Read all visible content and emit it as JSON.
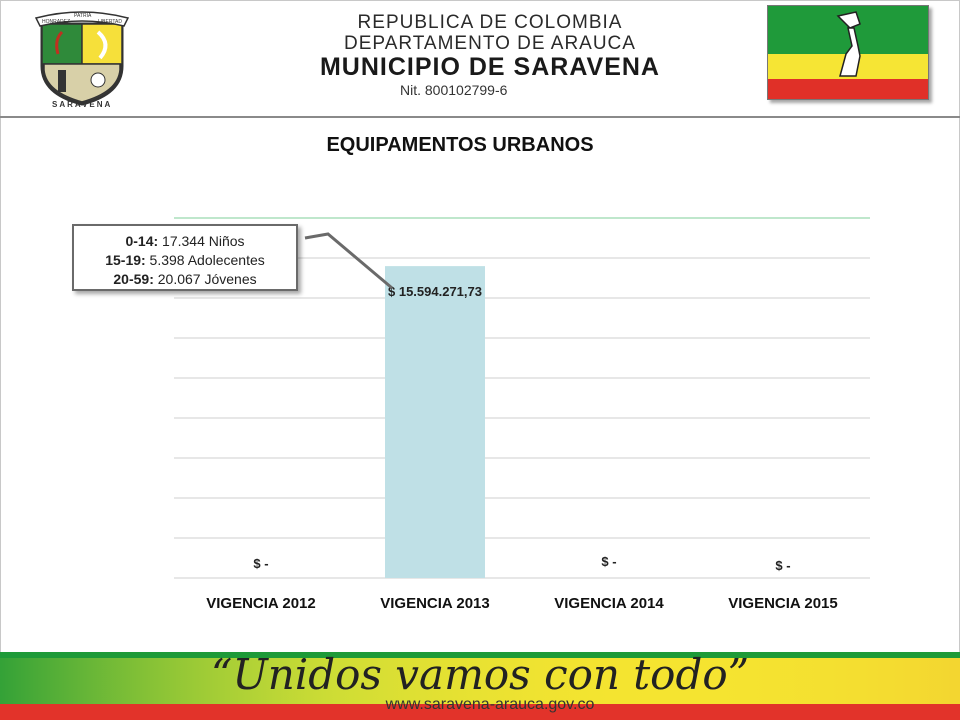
{
  "header": {
    "line1": "REPUBLICA DE COLOMBIA",
    "line2": "DEPARTAMENTO DE ARAUCA",
    "line3": "MUNICIPIO DE SARAVENA",
    "nit": "Nit. 800102799-6",
    "seal_text": "SARAVENA",
    "seal_ribbon": [
      "HONRADEZ",
      "PATRIA",
      "LIBERTAD"
    ]
  },
  "flag_colors": {
    "green": "#1f9a3a",
    "yellow": "#f6e534",
    "red": "#e03028"
  },
  "callout": {
    "rows": [
      {
        "range": "0-14:",
        "text": " 17.344  Niños"
      },
      {
        "range": "15-19:",
        "text": " 5.398 Adolecentes"
      },
      {
        "range": "20-59:",
        "text": " 20.067 Jóvenes"
      }
    ]
  },
  "chart_data": {
    "type": "bar",
    "title": "EQUIPAMENTOS URBANOS",
    "categories": [
      "VIGENCIA 2012",
      "VIGENCIA 2013",
      "VIGENCIA 2014",
      "VIGENCIA 2015"
    ],
    "values": [
      0,
      15594271.73,
      0,
      0
    ],
    "data_labels": [
      "$ -",
      "$ 15.594.271,73",
      "$ -",
      "$ -"
    ],
    "ylim": [
      0,
      18000000
    ],
    "grid": true,
    "bar_color": "#bfe0e6"
  },
  "footer": {
    "slogan": "“Unidos vamos con todo”",
    "website": "www.saravena-arauca.gov.co",
    "band_colors": [
      "#1e9a38",
      "#f5e430",
      "#e2332a"
    ]
  }
}
